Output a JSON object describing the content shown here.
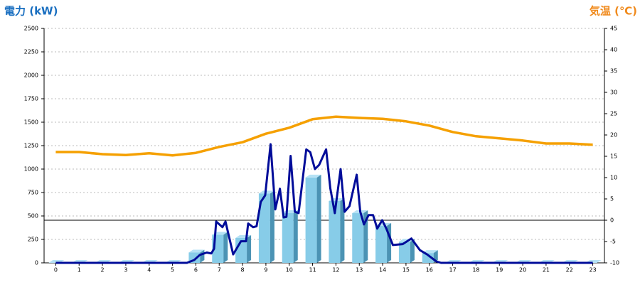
{
  "chart_data": {
    "type": "bar",
    "title": "電力 (kW)",
    "y2_title": "気温 (℃)",
    "x": [
      0,
      1,
      2,
      3,
      4,
      5,
      6,
      7,
      8,
      9,
      10,
      11,
      12,
      13,
      14,
      15,
      16,
      17,
      18,
      19,
      20,
      21,
      22,
      23
    ],
    "xlim": [
      -0.5,
      23.5
    ],
    "xticks": [
      0,
      1,
      2,
      3,
      4,
      5,
      6,
      7,
      8,
      9,
      10,
      11,
      12,
      13,
      14,
      15,
      16,
      17,
      18,
      19,
      20,
      21,
      22,
      23
    ],
    "ylim": [
      0,
      2500
    ],
    "yticks": [
      0,
      250,
      500,
      750,
      1000,
      1250,
      1500,
      1750,
      2000,
      2250,
      2500
    ],
    "y2lim": [
      -10,
      45
    ],
    "y2ticks": [
      -10,
      -5,
      0,
      5,
      10,
      15,
      20,
      25,
      30,
      35,
      40,
      45
    ],
    "grid": true,
    "series": [
      {
        "type": "bar",
        "color": "#87cce8",
        "values": [
          0,
          0,
          0,
          0,
          0,
          0,
          110,
          300,
          265,
          740,
          530,
          910,
          660,
          530,
          395,
          225,
          105,
          0,
          0,
          0,
          0,
          0,
          0,
          0
        ]
      },
      {
        "type": "line",
        "color": "#000c99",
        "x": [
          0,
          5.62,
          5.93,
          6.17,
          6.47,
          6.66,
          6.78,
          6.87,
          7.14,
          7.27,
          7.6,
          7.93,
          8.15,
          8.24,
          8.45,
          8.6,
          8.78,
          8.97,
          9.2,
          9.4,
          9.6,
          9.76,
          9.88,
          10.06,
          10.24,
          10.4,
          10.73,
          10.9,
          11.1,
          11.28,
          11.58,
          11.76,
          11.95,
          12.2,
          12.37,
          12.58,
          12.89,
          13.04,
          13.2,
          13.4,
          13.59,
          13.77,
          13.98,
          14.16,
          14.44,
          14.86,
          15.23,
          15.6,
          15.9,
          16.3,
          16.5,
          23
        ],
        "values": [
          0,
          0,
          30,
          85,
          110,
          100,
          150,
          440,
          380,
          440,
          90,
          230,
          230,
          420,
          380,
          390,
          650,
          720,
          1265,
          570,
          790,
          485,
          490,
          1140,
          545,
          530,
          1210,
          1180,
          1000,
          1045,
          1210,
          795,
          530,
          1000,
          545,
          605,
          940,
          545,
          410,
          510,
          510,
          365,
          455,
          365,
          190,
          200,
          260,
          135,
          90,
          15,
          0,
          0
        ]
      },
      {
        "type": "line",
        "axis": "y2",
        "color": "#f5a000",
        "values": [
          16,
          16,
          15.5,
          15.3,
          15.7,
          15.2,
          15.8,
          17.2,
          18.3,
          20.3,
          21.7,
          23.7,
          24.3,
          24,
          23.8,
          23.2,
          22.2,
          20.7,
          19.7,
          19.2,
          18.7,
          18,
          18,
          17.7
        ]
      }
    ]
  }
}
